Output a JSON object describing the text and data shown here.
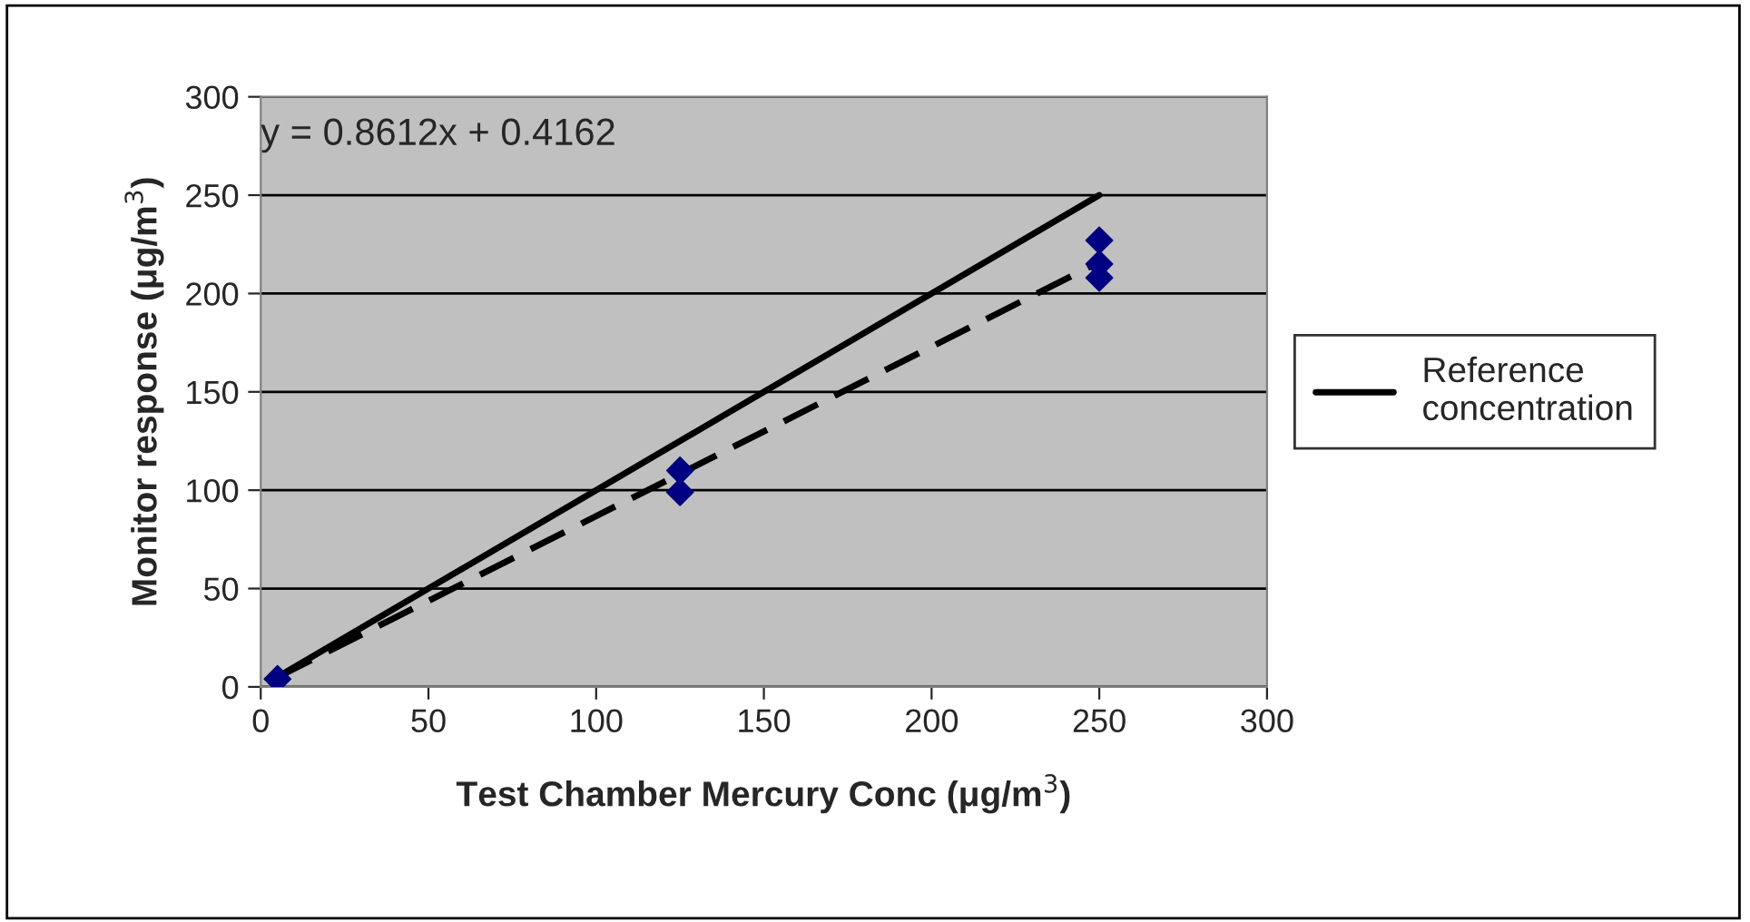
{
  "chart_data": {
    "type": "scatter",
    "xlabel": "Test Chamber Mercury Conc (μg/m$^{3}$)",
    "ylabel": "Monitor response (μg/m$^{3}$)",
    "xlim": [
      0,
      300
    ],
    "xticks": [
      0,
      50,
      100,
      150,
      200,
      250,
      300
    ],
    "ylim": [
      0,
      300
    ],
    "yticks": [
      0,
      50,
      100,
      150,
      200,
      250,
      300
    ],
    "grid": "y",
    "legend": "right",
    "marker": "diamond",
    "annotations": [
      "y = 0.8612x + 0.4162"
    ],
    "series": [
      {
        "color": "#000080",
        "x": [
          5,
          125,
          125,
          250,
          250,
          250
        ],
        "values": [
          4,
          110,
          99,
          227,
          215,
          208
        ]
      },
      {
        "type": "line",
        "name": "Reference concentration",
        "color": "#000000",
        "line_style": "solid",
        "marker": "none",
        "x": [
          5,
          250
        ],
        "values": [
          5,
          250
        ]
      },
      {
        "type": "line",
        "color": "#000000",
        "line_style": "dashed",
        "marker": "none",
        "x": [
          5,
          250
        ],
        "values": [
          5,
          216
        ]
      }
    ]
  }
}
